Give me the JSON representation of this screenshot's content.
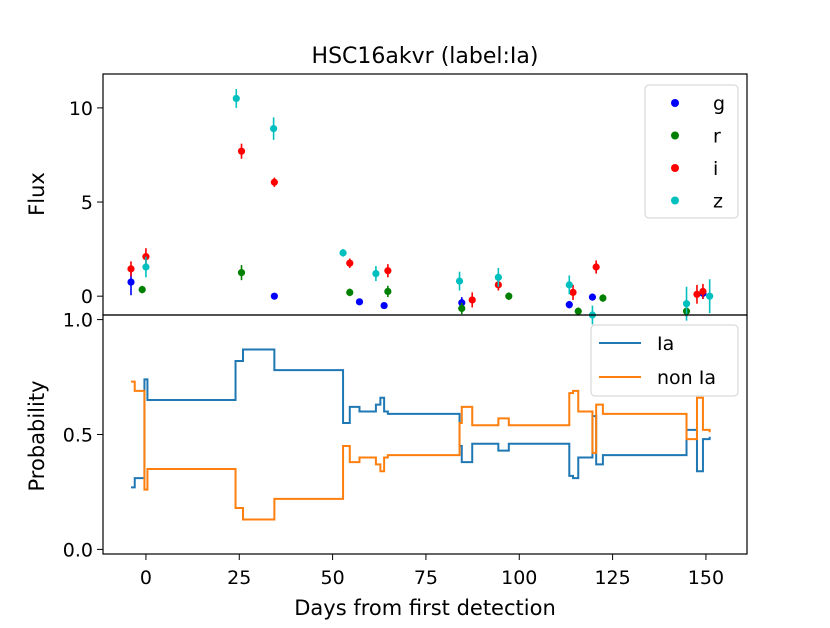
{
  "chart_data": [
    {
      "type": "scatter",
      "title": "HSC16akvr (label:Ia)",
      "xlabel": "Days from first detection",
      "ylabel": "Flux",
      "xlim": [
        -11.5,
        161
      ],
      "ylim": [
        -1.0,
        11.8
      ],
      "yticks": [
        0,
        5,
        10
      ],
      "legend_position": "upper-right",
      "series": [
        {
          "name": "g",
          "color": "#0000ff",
          "points": [
            {
              "x": -4,
              "y": 0.75,
              "err": 0.7
            },
            {
              "x": 34.4,
              "y": 0.0,
              "err": 0.1
            },
            {
              "x": 57.2,
              "y": -0.3,
              "err": 0.1
            },
            {
              "x": 63.8,
              "y": -0.5,
              "err": 0.1
            },
            {
              "x": 84.6,
              "y": -0.35,
              "err": 0.3
            },
            {
              "x": 113.4,
              "y": -0.45,
              "err": 0.2
            },
            {
              "x": 119.6,
              "y": -0.05,
              "err": 0.1
            },
            {
              "x": 149.2,
              "y": 0.15,
              "err": 0.3
            }
          ]
        },
        {
          "name": "r",
          "color": "#008000",
          "points": [
            {
              "x": -1,
              "y": 0.35,
              "err": 0.2
            },
            {
              "x": 25.6,
              "y": 1.25,
              "err": 0.4
            },
            {
              "x": 54.6,
              "y": 0.2,
              "err": 0.2
            },
            {
              "x": 64.8,
              "y": 0.25,
              "err": 0.3
            },
            {
              "x": 84.6,
              "y": -0.65,
              "err": 0.3
            },
            {
              "x": 97.2,
              "y": 0.0,
              "err": 0.2
            },
            {
              "x": 115.8,
              "y": -0.8,
              "err": 0.2
            },
            {
              "x": 122.4,
              "y": -0.1,
              "err": 0.2
            },
            {
              "x": 144.8,
              "y": -0.8,
              "err": 0.3
            }
          ]
        },
        {
          "name": "i",
          "color": "#ff0000",
          "points": [
            {
              "x": -4,
              "y": 1.45,
              "err": 0.4
            },
            {
              "x": 0,
              "y": 2.1,
              "err": 0.45
            },
            {
              "x": 25.6,
              "y": 7.7,
              "err": 0.4
            },
            {
              "x": 34.4,
              "y": 6.05,
              "err": 0.25
            },
            {
              "x": 54.6,
              "y": 1.75,
              "err": 0.25
            },
            {
              "x": 64.8,
              "y": 1.35,
              "err": 0.35
            },
            {
              "x": 87.4,
              "y": -0.2,
              "err": 0.4
            },
            {
              "x": 94.4,
              "y": 0.6,
              "err": 0.3
            },
            {
              "x": 114.4,
              "y": 0.2,
              "err": 0.4
            },
            {
              "x": 120.6,
              "y": 1.55,
              "err": 0.35
            },
            {
              "x": 147.6,
              "y": 0.1,
              "err": 0.5
            },
            {
              "x": 149.2,
              "y": 0.25,
              "err": 0.4
            }
          ]
        },
        {
          "name": "z",
          "color": "#00bfbf",
          "points": [
            {
              "x": 0,
              "y": 1.55,
              "err": 0.55
            },
            {
              "x": 24.2,
              "y": 10.5,
              "err": 0.5
            },
            {
              "x": 34.2,
              "y": 8.9,
              "err": 0.6
            },
            {
              "x": 52.8,
              "y": 2.3,
              "err": 0.2
            },
            {
              "x": 61.6,
              "y": 1.2,
              "err": 0.4
            },
            {
              "x": 84.0,
              "y": 0.8,
              "err": 0.5
            },
            {
              "x": 94.4,
              "y": 1.0,
              "err": 0.5
            },
            {
              "x": 113.4,
              "y": 0.6,
              "err": 0.5
            },
            {
              "x": 119.6,
              "y": -1.0,
              "err": 0.5
            },
            {
              "x": 144.8,
              "y": -0.4,
              "err": 0.9
            },
            {
              "x": 151.0,
              "y": 0.0,
              "err": 0.9
            }
          ]
        }
      ]
    },
    {
      "type": "line",
      "drawstyle": "steps-post",
      "title": "",
      "xlabel": "Days from first detection",
      "ylabel": "Probability",
      "xlim": [
        -11.5,
        161
      ],
      "ylim": [
        -0.02,
        1.02
      ],
      "yticks": [
        "0.0",
        "0.5",
        "1.0"
      ],
      "xticks": [
        "0",
        "25",
        "50",
        "75",
        "100",
        "125",
        "150"
      ],
      "legend_position": "upper-right",
      "series": [
        {
          "name": "Ia",
          "color": "#1f77b4",
          "x": [
            -4,
            -3,
            -1,
            -0.4,
            0.4,
            24,
            26,
            34.4,
            52.8,
            54.6,
            57.2,
            61.6,
            62.8,
            63.8,
            64.8,
            84.0,
            84.6,
            87.4,
            94.4,
            97.2,
            113.4,
            114.4,
            115.8,
            119.6,
            120.6,
            122.4,
            144.8,
            147.6,
            149.2,
            151.0
          ],
          "values": [
            0.27,
            0.31,
            0.31,
            0.74,
            0.65,
            0.82,
            0.87,
            0.78,
            0.55,
            0.62,
            0.6,
            0.63,
            0.66,
            0.6,
            0.59,
            0.45,
            0.38,
            0.46,
            0.43,
            0.46,
            0.32,
            0.31,
            0.4,
            0.58,
            0.37,
            0.41,
            0.52,
            0.34,
            0.48,
            0.49
          ]
        },
        {
          "name": "non Ia",
          "color": "#ff7f0e",
          "x": [
            -4,
            -3,
            -1,
            -0.4,
            0.4,
            24,
            26,
            34.4,
            52.8,
            54.6,
            57.2,
            61.6,
            62.8,
            63.8,
            64.8,
            84.0,
            84.6,
            87.4,
            94.4,
            97.2,
            113.4,
            114.4,
            115.8,
            119.6,
            120.6,
            122.4,
            144.8,
            147.6,
            149.2,
            151.0
          ],
          "values": [
            0.73,
            0.69,
            0.69,
            0.26,
            0.35,
            0.18,
            0.13,
            0.22,
            0.45,
            0.38,
            0.4,
            0.37,
            0.34,
            0.4,
            0.41,
            0.55,
            0.62,
            0.54,
            0.57,
            0.54,
            0.68,
            0.69,
            0.6,
            0.42,
            0.63,
            0.59,
            0.48,
            0.66,
            0.52,
            0.51
          ]
        }
      ]
    }
  ]
}
